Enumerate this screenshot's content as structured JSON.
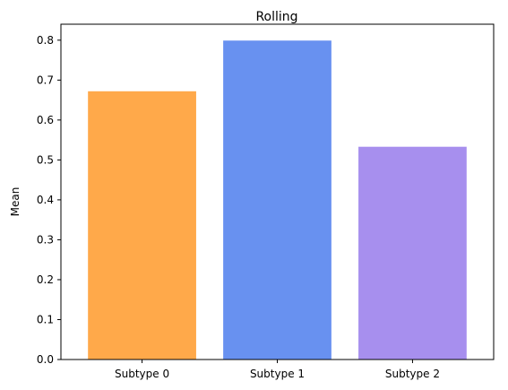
{
  "chart_data": {
    "type": "bar",
    "title": "Rolling",
    "xlabel": "",
    "ylabel": "Mean",
    "categories": [
      "Subtype 0",
      "Subtype 1",
      "Subtype 2"
    ],
    "values": [
      0.672,
      0.799,
      0.533
    ],
    "colors": [
      "#FFA94A",
      "#6891F0",
      "#A78FEE"
    ],
    "ylim": [
      0,
      0.84
    ],
    "yticks": [
      0.0,
      0.1,
      0.2,
      0.3,
      0.4,
      0.5,
      0.6,
      0.7,
      0.8
    ],
    "ytick_labels": [
      "0.0",
      "0.1",
      "0.2",
      "0.3",
      "0.4",
      "0.5",
      "0.6",
      "0.7",
      "0.8"
    ],
    "grid": false,
    "legend": "none"
  }
}
